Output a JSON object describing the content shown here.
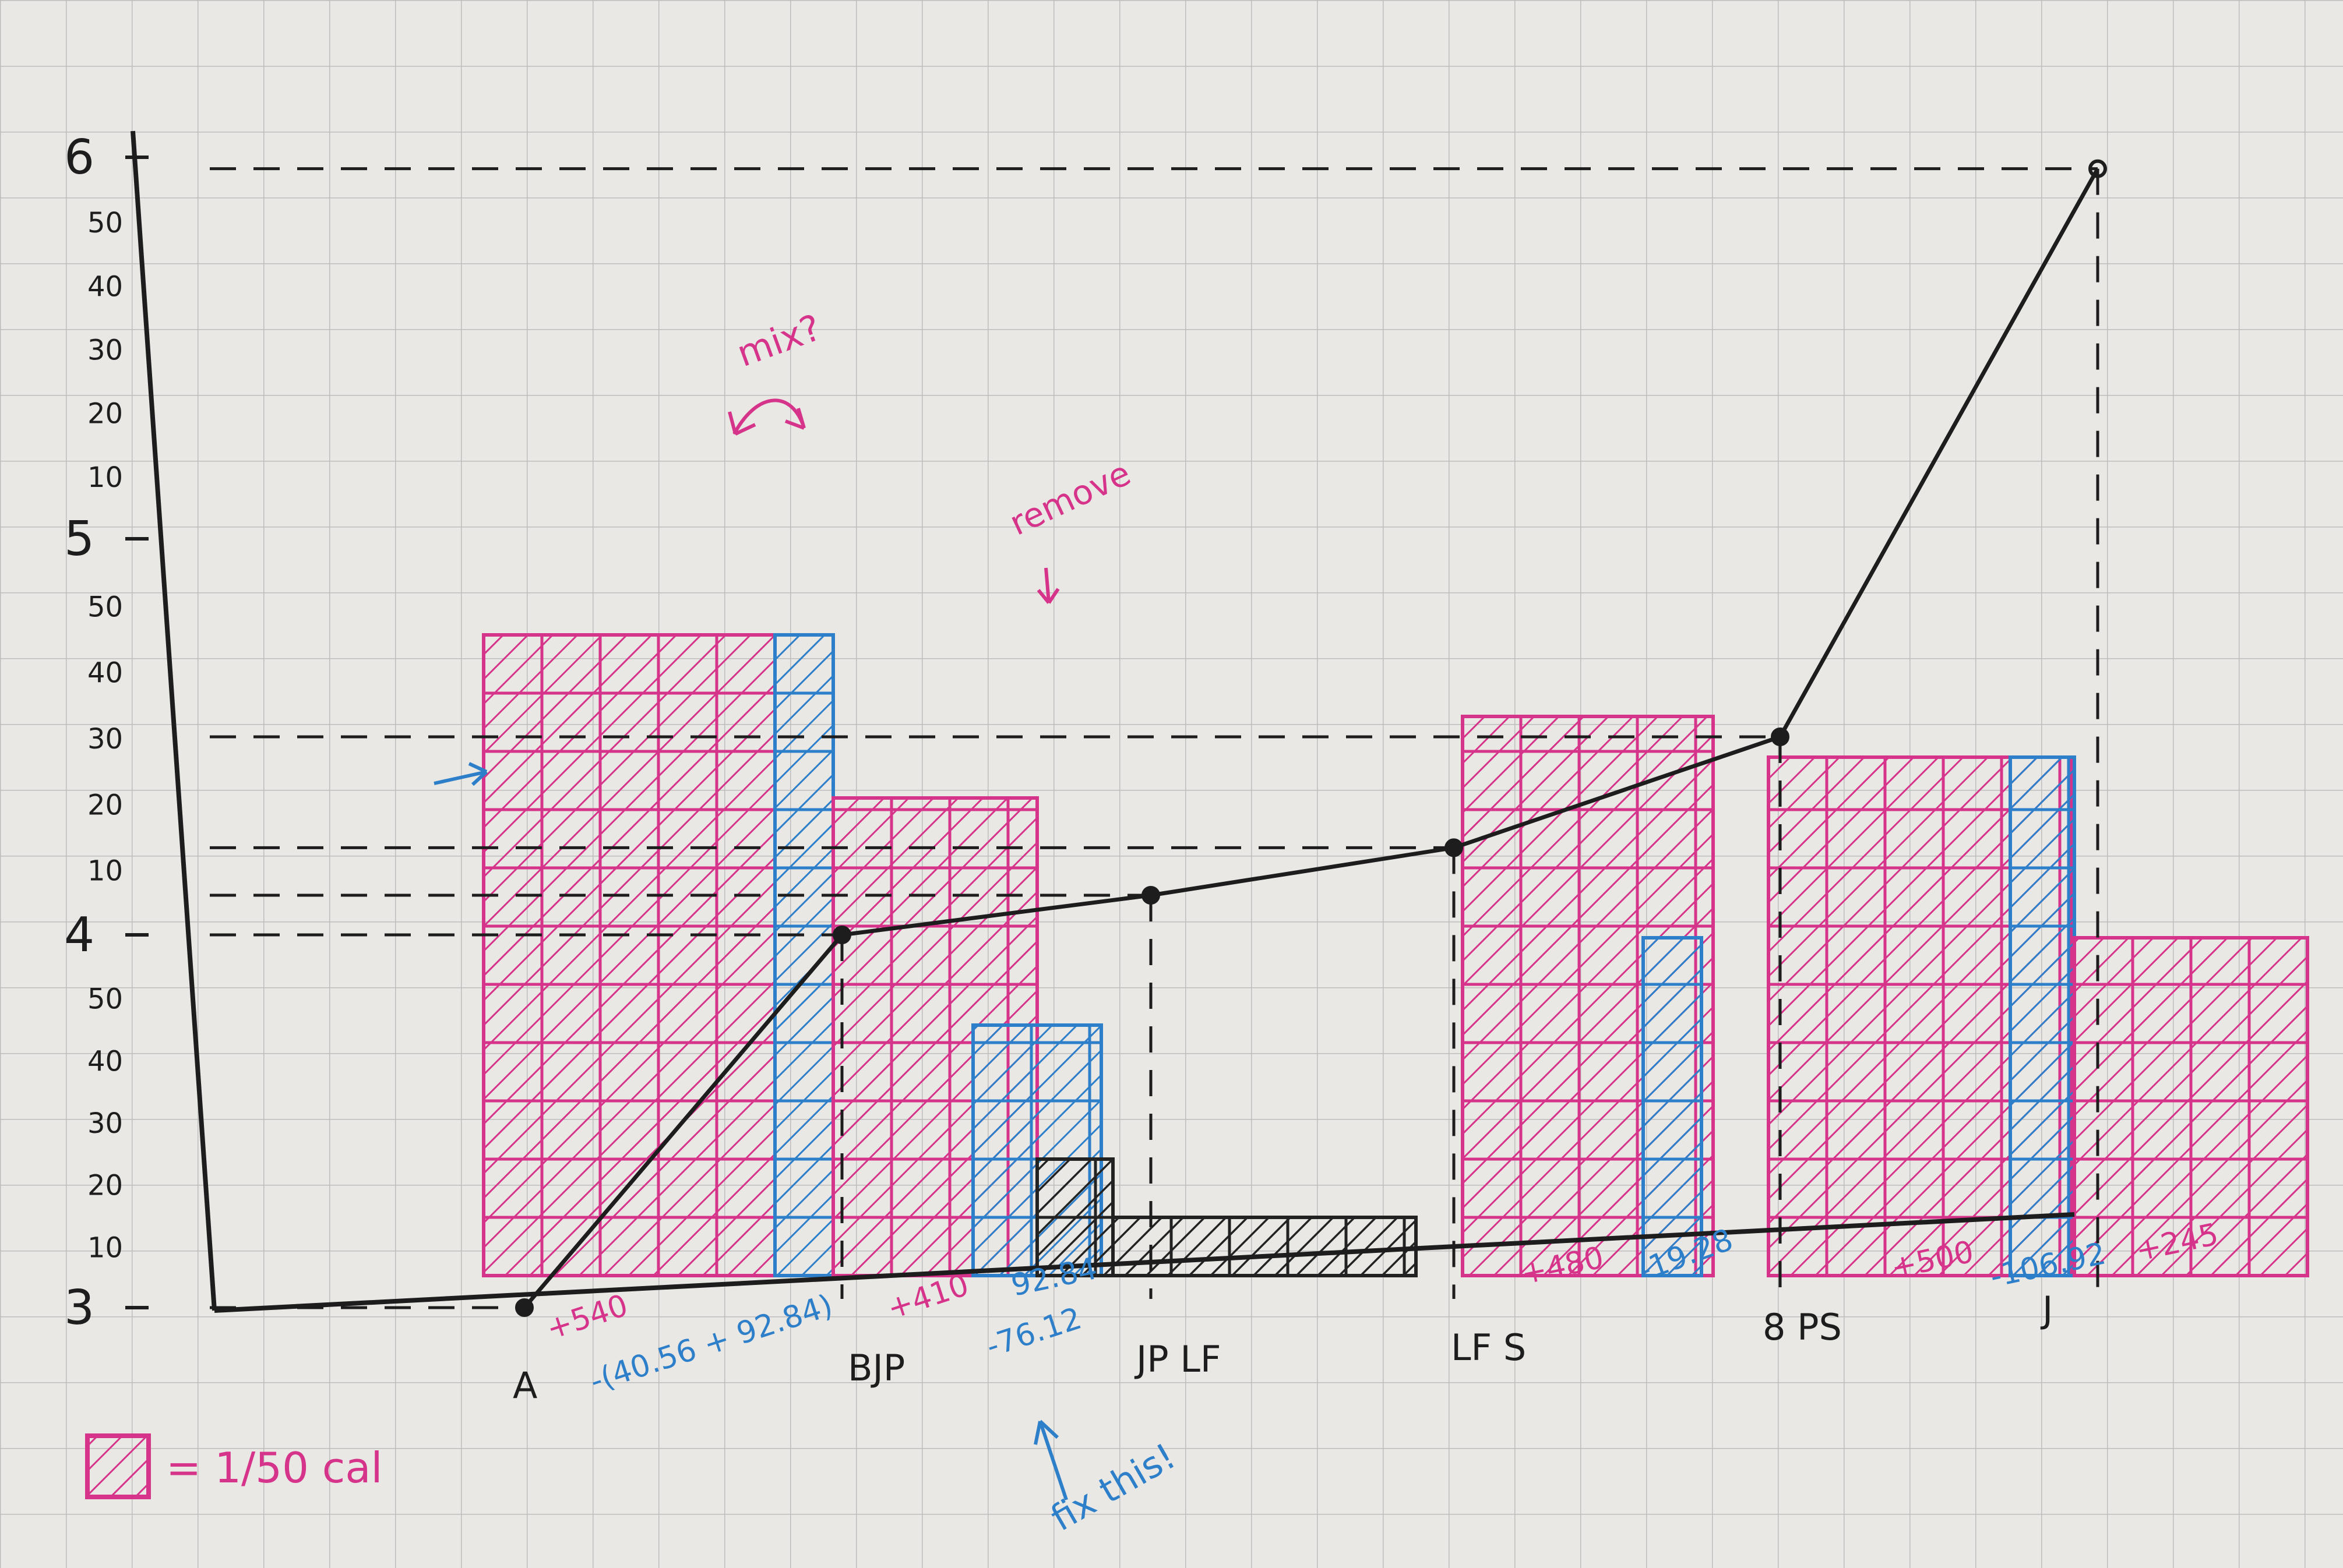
{
  "chart_data": {
    "type": "bar",
    "title": "",
    "xlabel": "",
    "ylabel": "",
    "y_axis": {
      "scale": "log",
      "major_ticks": [
        "3",
        "4",
        "5",
        "6"
      ],
      "minor_ticks_decade3": [
        "10",
        "20",
        "30",
        "40",
        "50"
      ],
      "minor_ticks_decade4": [
        "10",
        "20",
        "30",
        "40",
        "50"
      ],
      "minor_ticks_decade5": [
        "10",
        "20",
        "30",
        "40",
        "50"
      ]
    },
    "x_labels": [
      "A",
      "BJP",
      "JP LF",
      "LF S",
      "8 PS",
      "J"
    ],
    "step_labels": [
      {
        "text": "+540",
        "color": "#d6338a"
      },
      {
        "text": "-(40.56 + 92.84)",
        "color": "#2e7fc9"
      },
      {
        "text": "+410",
        "color": "#d6338a"
      },
      {
        "text": "92.84",
        "color": "#2e7fc9"
      },
      {
        "text": "-76.12",
        "color": "#2e7fc9"
      },
      {
        "text": "+480",
        "color": "#d6338a"
      },
      {
        "text": "-19.28",
        "color": "#2e7fc9"
      },
      {
        "text": "+500",
        "color": "#d6338a"
      },
      {
        "text": "-106.92",
        "color": "#2e7fc9"
      },
      {
        "text": "+245",
        "color": "#d6338a"
      }
    ],
    "line_points_log_units": [
      3.0,
      4.0,
      4.1,
      4.22,
      4.5,
      5.97
    ],
    "bar_units_of_50cal": [
      {
        "color": "#d6338a",
        "units": 11.0
      },
      {
        "color": "#2e7fc9",
        "units": 11.0
      },
      {
        "color": "#d6338a",
        "units": 8.2
      },
      {
        "color": "#2e7fc9",
        "units": 4.3
      },
      {
        "color": "#222222",
        "units": 2.0
      },
      {
        "color": "#222222",
        "units": 1.0
      },
      {
        "color": "#d6338a",
        "units": 9.6
      },
      {
        "color": "#2e7fc9",
        "units": 5.8
      },
      {
        "color": "#d6338a",
        "units": 8.9
      },
      {
        "color": "#2e7fc9",
        "units": 8.9
      },
      {
        "color": "#d6338a",
        "units": 5.8
      }
    ],
    "annotations": {
      "mix": "mix?",
      "remove": "remove",
      "fix": "fix this!"
    },
    "legend": {
      "text": "= 1/50 cal",
      "swatch_color": "#d6338a"
    },
    "colors": {
      "gain": "#d6338a",
      "loss": "#2e7fc9",
      "ink": "#1d1d1d",
      "grid": "#bdbdbd",
      "paper": "#e9e8e4"
    }
  }
}
